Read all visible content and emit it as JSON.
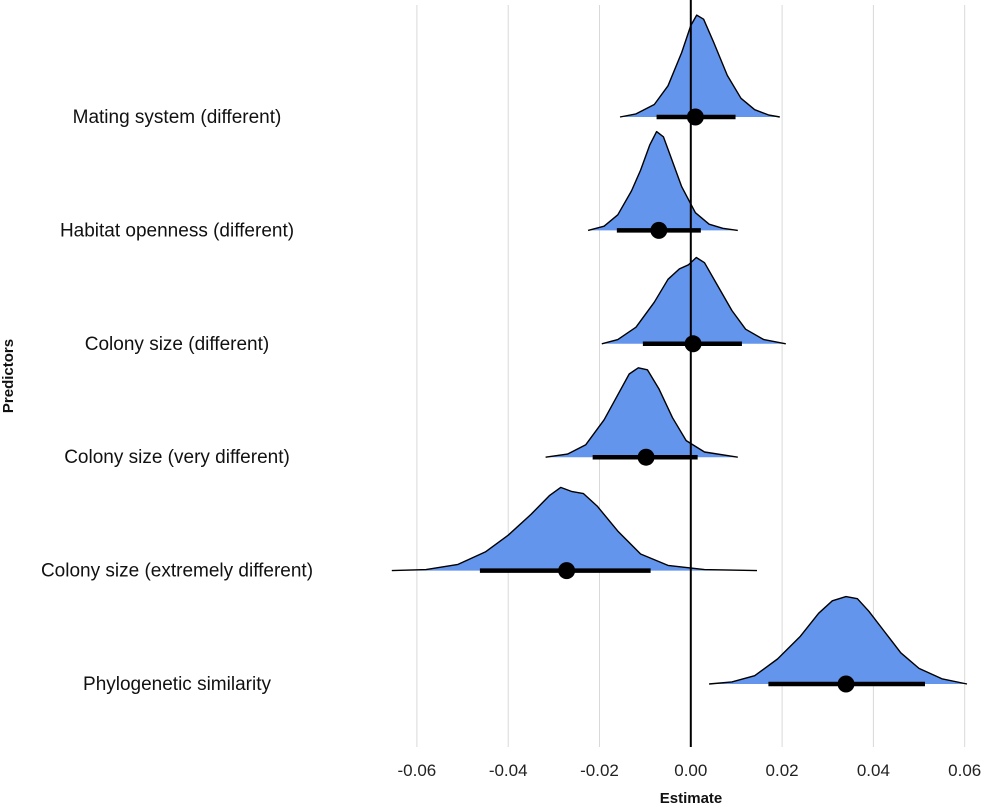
{
  "chart_data": {
    "type": "ridgeline",
    "xlabel": "Estimate",
    "ylabel": "Predictors",
    "xlim": [
      -0.066,
      0.061
    ],
    "xticks": [
      -0.06,
      -0.04,
      -0.02,
      0.0,
      0.02,
      0.04,
      0.06
    ],
    "xtick_labels": [
      "-0.06",
      "-0.04",
      "-0.02",
      "0.00",
      "0.02",
      "0.04",
      "0.06"
    ],
    "grid": "vertical",
    "reference_line": 0,
    "fill_color": "#6495ED",
    "line_color": "#000000",
    "predictors": [
      {
        "label": "Mating system (different)",
        "estimate": 0.001,
        "interval": [
          -0.0075,
          0.0098
        ],
        "density": [
          [
            -0.0155,
            0
          ],
          [
            -0.012,
            0.03
          ],
          [
            -0.008,
            0.12
          ],
          [
            -0.005,
            0.3
          ],
          [
            -0.002,
            0.62
          ],
          [
            0.0,
            0.88
          ],
          [
            0.0013,
            0.98
          ],
          [
            0.0028,
            0.94
          ],
          [
            0.005,
            0.72
          ],
          [
            0.008,
            0.4
          ],
          [
            0.011,
            0.18
          ],
          [
            0.014,
            0.07
          ],
          [
            0.017,
            0.02
          ],
          [
            0.0195,
            0
          ]
        ]
      },
      {
        "label": "Habitat openness (different)",
        "estimate": -0.007,
        "interval": [
          -0.0162,
          0.0022
        ],
        "density": [
          [
            -0.0225,
            0
          ],
          [
            -0.019,
            0.04
          ],
          [
            -0.016,
            0.15
          ],
          [
            -0.013,
            0.38
          ],
          [
            -0.011,
            0.58
          ],
          [
            -0.009,
            0.82
          ],
          [
            -0.0075,
            0.95
          ],
          [
            -0.006,
            0.9
          ],
          [
            -0.0045,
            0.72
          ],
          [
            -0.002,
            0.42
          ],
          [
            0.001,
            0.17
          ],
          [
            0.004,
            0.06
          ],
          [
            0.007,
            0.02
          ],
          [
            0.0103,
            0
          ]
        ]
      },
      {
        "label": "Colony size (different)",
        "estimate": 0.0005,
        "interval": [
          -0.0105,
          0.0112
        ],
        "density": [
          [
            -0.0195,
            0
          ],
          [
            -0.016,
            0.04
          ],
          [
            -0.012,
            0.16
          ],
          [
            -0.008,
            0.4
          ],
          [
            -0.005,
            0.62
          ],
          [
            -0.0025,
            0.72
          ],
          [
            -0.0005,
            0.76
          ],
          [
            0.0012,
            0.83
          ],
          [
            0.003,
            0.78
          ],
          [
            0.006,
            0.55
          ],
          [
            0.009,
            0.32
          ],
          [
            0.012,
            0.14
          ],
          [
            0.016,
            0.04
          ],
          [
            0.0208,
            0
          ]
        ]
      },
      {
        "label": "Colony size (very different)",
        "estimate": -0.0098,
        "interval": [
          -0.0215,
          0.0015
        ],
        "density": [
          [
            -0.0318,
            0
          ],
          [
            -0.027,
            0.03
          ],
          [
            -0.023,
            0.12
          ],
          [
            -0.019,
            0.36
          ],
          [
            -0.016,
            0.6
          ],
          [
            -0.0135,
            0.8
          ],
          [
            -0.0115,
            0.86
          ],
          [
            -0.0095,
            0.84
          ],
          [
            -0.007,
            0.66
          ],
          [
            -0.004,
            0.38
          ],
          [
            -0.001,
            0.16
          ],
          [
            0.003,
            0.05
          ],
          [
            0.0103,
            0
          ]
        ]
      },
      {
        "label": "Colony size (extremely different)",
        "estimate": -0.0272,
        "interval": [
          -0.0462,
          -0.0088
        ],
        "density": [
          [
            -0.0655,
            0
          ],
          [
            -0.058,
            0.01
          ],
          [
            -0.051,
            0.06
          ],
          [
            -0.045,
            0.18
          ],
          [
            -0.04,
            0.34
          ],
          [
            -0.035,
            0.54
          ],
          [
            -0.031,
            0.72
          ],
          [
            -0.0285,
            0.8
          ],
          [
            -0.026,
            0.76
          ],
          [
            -0.0235,
            0.74
          ],
          [
            -0.0205,
            0.62
          ],
          [
            -0.016,
            0.38
          ],
          [
            -0.011,
            0.16
          ],
          [
            -0.005,
            0.05
          ],
          [
            0.003,
            0.01
          ],
          [
            0.0145,
            0
          ]
        ]
      },
      {
        "label": "Phylogenetic similarity",
        "estimate": 0.034,
        "interval": [
          0.017,
          0.0513
        ],
        "density": [
          [
            0.004,
            0
          ],
          [
            0.009,
            0.02
          ],
          [
            0.014,
            0.08
          ],
          [
            0.019,
            0.24
          ],
          [
            0.024,
            0.46
          ],
          [
            0.028,
            0.68
          ],
          [
            0.031,
            0.8
          ],
          [
            0.034,
            0.84
          ],
          [
            0.0365,
            0.82
          ],
          [
            0.039,
            0.7
          ],
          [
            0.0425,
            0.5
          ],
          [
            0.046,
            0.3
          ],
          [
            0.05,
            0.15
          ],
          [
            0.055,
            0.05
          ],
          [
            0.0605,
            0
          ]
        ]
      }
    ]
  }
}
